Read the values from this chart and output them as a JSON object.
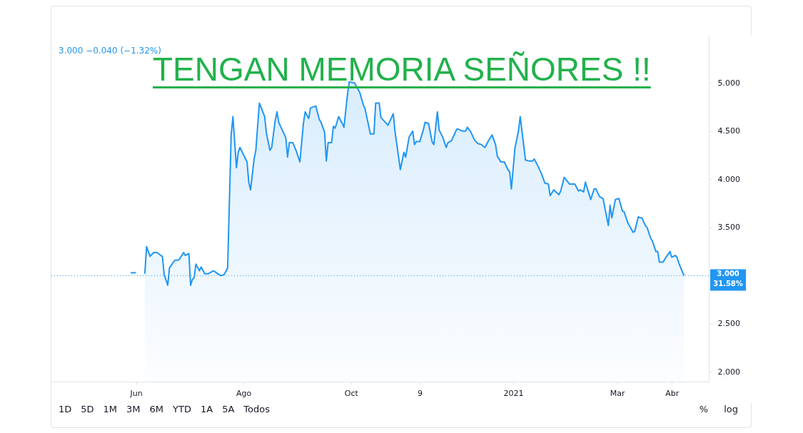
{
  "chart_data": {
    "type": "area",
    "title": "TENGAN MEMORIA SEÑORES !!",
    "subtitle": "3.000 −0.040 (−1.32%)",
    "x": [
      "2020-06-06",
      "2020-06-07",
      "2020-06-09",
      "2020-06-11",
      "2020-06-13",
      "2020-06-15",
      "2020-06-16",
      "2020-06-17",
      "2020-06-19",
      "2020-06-20",
      "2020-06-23",
      "2020-06-25",
      "2020-06-26",
      "2020-06-28",
      "2020-06-29",
      "2020-07-01",
      "2020-07-02",
      "2020-07-03",
      "2020-07-04",
      "2020-07-05",
      "2020-07-07",
      "2020-07-08",
      "2020-07-10",
      "2020-07-12",
      "2020-07-15",
      "2020-07-19",
      "2020-07-21",
      "2020-07-23",
      "2020-07-25",
      "2020-07-26",
      "2020-07-28",
      "2020-07-29",
      "2020-07-30",
      "2020-08-03",
      "2020-08-04",
      "2020-08-05",
      "2020-08-07",
      "2020-08-08",
      "2020-08-10",
      "2020-08-13",
      "2020-08-14",
      "2020-08-16",
      "2020-08-17",
      "2020-08-19",
      "2020-08-20",
      "2020-08-21",
      "2020-08-25",
      "2020-08-26",
      "2020-08-27",
      "2020-08-29",
      "2020-08-31",
      "2020-09-02",
      "2020-09-04",
      "2020-09-05",
      "2020-09-07",
      "2020-09-08",
      "2020-09-11",
      "2020-09-13",
      "2020-09-14",
      "2020-09-16",
      "2020-09-17",
      "2020-09-18",
      "2020-09-20",
      "2020-09-21",
      "2020-09-22",
      "2020-09-24",
      "2020-09-26",
      "2020-09-27",
      "2020-09-29",
      "2020-09-30",
      "2020-10-03",
      "2020-10-06",
      "2020-10-08",
      "2020-10-09",
      "2020-10-12",
      "2020-10-14",
      "2020-10-15",
      "2020-10-17",
      "2020-10-18",
      "2020-10-22",
      "2020-10-25",
      "2020-10-26",
      "2020-10-29",
      "2020-10-31",
      "2020-11-01",
      "2020-11-03",
      "2020-11-05",
      "2020-11-06",
      "2020-11-07",
      "2020-11-09",
      "2020-11-11",
      "2020-11-12",
      "2020-11-14",
      "2020-11-16",
      "2020-11-17",
      "2020-11-19",
      "2020-11-20",
      "2020-11-22",
      "2020-11-24",
      "2020-11-25",
      "2020-11-27",
      "2020-11-30",
      "2020-12-01",
      "2020-12-03",
      "2020-12-05",
      "2020-12-06",
      "2020-12-08",
      "2020-12-10",
      "2020-12-12",
      "2020-12-14",
      "2020-12-16",
      "2020-12-18",
      "2020-12-20",
      "2020-12-22",
      "2020-12-23",
      "2020-12-25",
      "2020-12-27",
      "2020-12-29",
      "2020-12-30",
      "2020-12-31",
      "2021-01-02",
      "2021-01-04",
      "2021-01-05",
      "2021-01-08",
      "2021-01-10",
      "2021-01-12",
      "2021-01-13",
      "2021-01-15",
      "2021-01-17",
      "2021-01-19",
      "2021-01-21",
      "2021-01-22",
      "2021-01-24",
      "2021-01-27",
      "2021-01-28",
      "2021-01-30",
      "2021-02-02",
      "2021-02-05",
      "2021-02-07",
      "2021-02-08",
      "2021-02-10",
      "2021-02-11",
      "2021-02-14",
      "2021-02-16",
      "2021-02-17",
      "2021-02-19",
      "2021-02-21",
      "2021-02-24",
      "2021-02-25",
      "2021-02-26",
      "2021-02-28",
      "2021-03-02",
      "2021-03-04",
      "2021-03-05",
      "2021-03-07",
      "2021-03-10",
      "2021-03-11",
      "2021-03-13",
      "2021-03-14",
      "2021-03-15",
      "2021-03-17",
      "2021-03-18",
      "2021-03-20",
      "2021-03-21",
      "2021-03-23",
      "2021-03-24",
      "2021-03-25",
      "2021-03-27",
      "2021-03-28",
      "2021-03-31",
      "2021-04-01",
      "2021-04-03",
      "2021-04-04",
      "2021-04-05",
      "2021-04-07",
      "2021-04-08"
    ],
    "series": [
      {
        "type": "line",
        "color": "#2196f3",
        "x": [
          "2020-05-29",
          "2020-06-01"
        ],
        "values": [
          3.03,
          3.03
        ]
      },
      {
        "color": "#2196f3",
        "values": [
          3.02,
          3.3,
          3.2,
          3.24,
          3.24,
          3.21,
          3.2,
          3.01,
          2.9,
          3.08,
          3.16,
          3.16,
          3.18,
          3.24,
          3.21,
          3.23,
          2.9,
          2.96,
          2.98,
          3.12,
          3.05,
          3.09,
          3.02,
          3.02,
          3.05,
          3.0,
          3.01,
          3.08,
          4.46,
          4.65,
          4.12,
          4.28,
          4.33,
          4.18,
          3.97,
          3.89,
          4.21,
          4.3,
          4.79,
          4.65,
          4.48,
          4.3,
          4.33,
          4.61,
          4.7,
          4.59,
          4.43,
          4.23,
          4.38,
          4.38,
          4.29,
          4.18,
          4.58,
          4.7,
          4.63,
          4.74,
          4.76,
          4.62,
          4.59,
          4.49,
          4.19,
          4.38,
          4.38,
          4.55,
          4.53,
          4.65,
          4.58,
          4.54,
          4.88,
          5.01,
          5.0,
          4.9,
          4.77,
          4.73,
          4.47,
          4.47,
          4.79,
          4.79,
          4.64,
          4.56,
          4.68,
          4.49,
          4.1,
          4.28,
          4.23,
          4.44,
          4.5,
          4.36,
          4.39,
          4.39,
          4.51,
          4.59,
          4.58,
          4.39,
          4.36,
          4.7,
          4.51,
          4.44,
          4.33,
          4.38,
          4.4,
          4.52,
          4.52,
          4.5,
          4.5,
          4.54,
          4.49,
          4.41,
          4.37,
          4.36,
          4.33,
          4.4,
          4.46,
          4.36,
          4.24,
          4.18,
          4.18,
          4.1,
          4.08,
          3.9,
          4.32,
          4.5,
          4.65,
          4.2,
          4.19,
          4.19,
          4.21,
          4.14,
          4.06,
          3.96,
          3.95,
          3.83,
          3.89,
          3.84,
          3.88,
          4.02,
          3.95,
          3.95,
          3.88,
          3.89,
          3.87,
          3.97,
          3.79,
          3.9,
          3.9,
          3.82,
          3.8,
          3.52,
          3.73,
          3.6,
          3.79,
          3.8,
          3.67,
          3.66,
          3.55,
          3.45,
          3.46,
          3.61,
          3.6,
          3.6,
          3.52,
          3.5,
          3.39,
          3.36,
          3.25,
          3.25,
          3.14,
          3.14,
          3.17,
          3.25,
          3.19,
          3.21,
          3.19,
          3.13,
          3.04,
          3.0
        ]
      }
    ],
    "xlim": [
      "2020-04-14",
      "2021-04-22"
    ],
    "xticks": [
      {
        "value": "2020-06-01",
        "label": "Jun"
      },
      {
        "value": "2020-08-01",
        "label": "Ago"
      },
      {
        "value": "2020-10-01",
        "label": "Oct"
      },
      {
        "value": "2020-11-09",
        "label": "9"
      },
      {
        "value": "2021-01-01",
        "label": "2021"
      },
      {
        "value": "2021-03-01",
        "label": "Mar"
      },
      {
        "value": "2021-04-01",
        "label": "Abr"
      }
    ],
    "ylim": [
      1.9,
      5.49
    ],
    "yticks": [
      {
        "value": 2,
        "label": "2.000"
      },
      {
        "value": 2.5,
        "label": "2.500"
      },
      {
        "value": 3.5,
        "label": "3.500"
      },
      {
        "value": 4,
        "label": "4.000"
      },
      {
        "value": 4.5,
        "label": "4.500"
      },
      {
        "value": 5,
        "label": "5.000"
      }
    ],
    "ref_lines": [
      {
        "axis": "y",
        "value": 3,
        "label": "3.000\n31.58%",
        "color": "#2196f3",
        "line_style": "dotted"
      }
    ],
    "grid": false,
    "annotations": [
      "1D",
      "5D",
      "1M",
      "3M",
      "6M",
      "YTD",
      "1A",
      "5A",
      "Todos",
      "%",
      "log"
    ]
  }
}
